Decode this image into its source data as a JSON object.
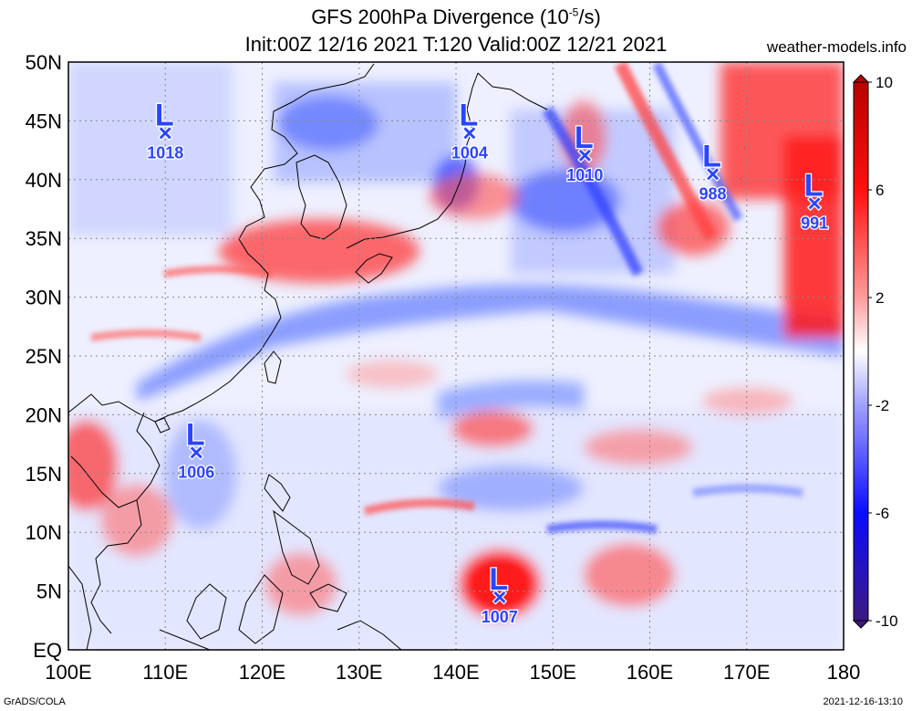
{
  "header": {
    "title_prefix": "GFS 200hPa Divergence (10",
    "title_exp": "-5",
    "title_suffix": "/s)",
    "subtitle": "Init:00Z 12/16 2021 T:120 Valid:00Z 12/21 2021",
    "site": "weather-models.info"
  },
  "footer": {
    "left": "GrADS/COLA",
    "right": "2021-12-16-13:10"
  },
  "map": {
    "lon_range": [
      100,
      180
    ],
    "lat_range": [
      0,
      50
    ],
    "x_ticks": [
      "100E",
      "110E",
      "120E",
      "130E",
      "140E",
      "150E",
      "160E",
      "170E",
      "180"
    ],
    "y_ticks": [
      "EQ",
      "5N",
      "10N",
      "15N",
      "20N",
      "25N",
      "30N",
      "35N",
      "40N",
      "45N",
      "50N"
    ],
    "grid": true,
    "lows": [
      {
        "label": "L",
        "pressure": "1018",
        "lon": 110.0,
        "lat": 44.0
      },
      {
        "label": "L",
        "pressure": "1004",
        "lon": 141.4,
        "lat": 44.0
      },
      {
        "label": "L",
        "pressure": "1010",
        "lon": 153.3,
        "lat": 42.1
      },
      {
        "label": "L",
        "pressure": "988",
        "lon": 166.5,
        "lat": 40.5
      },
      {
        "label": "L",
        "pressure": "991",
        "lon": 177.0,
        "lat": 38.0
      },
      {
        "label": "L",
        "pressure": "1006",
        "lon": 113.2,
        "lat": 16.8
      },
      {
        "label": "L",
        "pressure": "1007",
        "lon": 144.5,
        "lat": 4.5
      }
    ]
  },
  "colorbar": {
    "labels": [
      "10",
      "6",
      "2",
      "-2",
      "-6",
      "-10"
    ],
    "values": [
      10,
      6,
      2,
      -2,
      -6,
      -10
    ],
    "colors": {
      "max": "#c00000",
      "mid": "#ffffff",
      "min": "#0000c8",
      "end": "#3a1e7a"
    }
  }
}
